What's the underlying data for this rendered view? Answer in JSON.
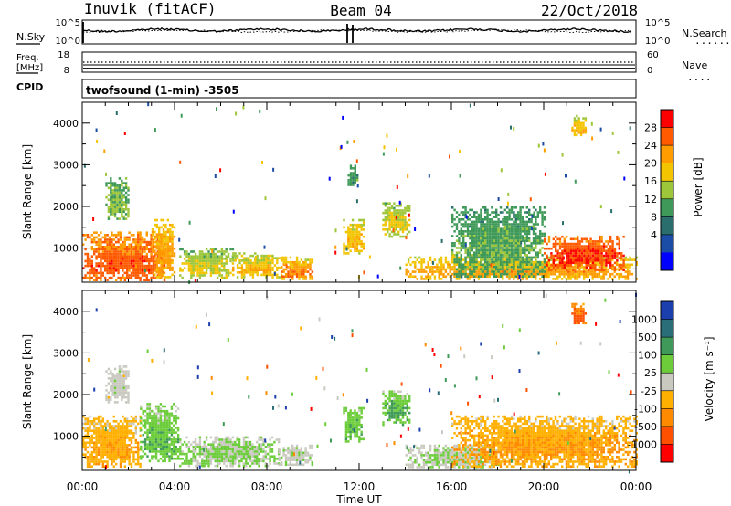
{
  "header": {
    "station": "Inuvik (fitACF)",
    "beam": "Beam 04",
    "date": "22/Oct/2018"
  },
  "noise_panel": {
    "left_label": "N.Sky",
    "right_label": "N.Search",
    "left_ticks": [
      "10^5",
      "10^0"
    ],
    "right_ticks": [
      "10^5",
      "10^0"
    ],
    "right_legend_marker": "......."
  },
  "freq_panel": {
    "left_label_line1": "Freq.",
    "left_label_line2": "[MHz]",
    "left_ticks": [
      "18",
      "8"
    ],
    "right_label": "Nave",
    "right_ticks": [
      "60",
      "0"
    ],
    "right_legend_marker": "...."
  },
  "cpid": {
    "label": "CPID",
    "value": "twofsound (1-min) -3505"
  },
  "x_axis": {
    "label": "Time UT",
    "tick_labels": [
      "00:00",
      "04:00",
      "08:00",
      "12:00",
      "16:00",
      "20:00",
      "00:00"
    ]
  },
  "power_colorbar": {
    "label": "Power [dB]",
    "ticks": [
      "28",
      "24",
      "20",
      "16",
      "12",
      "8",
      "4"
    ],
    "colors": [
      "#ff0000",
      "#ff5a00",
      "#ff9d00",
      "#f3c400",
      "#9ec63a",
      "#3f9a59",
      "#2a6e6e",
      "#1c4da6",
      "#0000ff"
    ]
  },
  "velocity_colorbar": {
    "label": "Velocity [m s⁻¹]",
    "ticks": [
      "1000",
      "500",
      "100",
      "25",
      "-25",
      "-100",
      "-500",
      "-1000"
    ],
    "colors": [
      "#1c3fae",
      "#2a6e7a",
      "#3f9a59",
      "#6ccc3a",
      "#c9c9c0",
      "#ffb000",
      "#ff8a00",
      "#ff5000",
      "#ff0000"
    ]
  },
  "chart_data": {
    "type": "heatmap",
    "x": {
      "label": "Time UT",
      "range_hours": [
        0,
        24
      ]
    },
    "y": {
      "label": "Slant Range [km]",
      "range_km": [
        180,
        4500
      ],
      "ticks": [
        1000,
        2000,
        3000,
        4000
      ]
    },
    "panels": [
      {
        "name": "power",
        "colorbar_label": "Power [dB]",
        "colorbar_range": [
          0,
          30
        ],
        "regions": [
          {
            "t0": 0.0,
            "t1": 3.6,
            "r0": 250,
            "r1": 1400,
            "value": 22,
            "core": 26
          },
          {
            "t0": 1.0,
            "t1": 2.0,
            "r0": 1700,
            "r1": 2700,
            "value": 12,
            "core": 14
          },
          {
            "t0": 3.0,
            "t1": 4.0,
            "r0": 300,
            "r1": 1700,
            "value": 18,
            "core": 22
          },
          {
            "t0": 4.2,
            "t1": 6.5,
            "r0": 300,
            "r1": 1000,
            "value": 13,
            "core": 18
          },
          {
            "t0": 6.5,
            "t1": 8.6,
            "r0": 300,
            "r1": 900,
            "value": 15,
            "core": 20
          },
          {
            "t0": 8.6,
            "t1": 10.0,
            "r0": 250,
            "r1": 800,
            "value": 17,
            "core": 24
          },
          {
            "t0": 11.3,
            "t1": 12.2,
            "r0": 900,
            "r1": 1700,
            "value": 16,
            "core": 20
          },
          {
            "t0": 11.5,
            "t1": 11.9,
            "r0": 2500,
            "r1": 3000,
            "value": 10,
            "core": 12
          },
          {
            "t0": 13.0,
            "t1": 14.2,
            "r0": 1300,
            "r1": 2100,
            "value": 14,
            "core": 18
          },
          {
            "t0": 14.0,
            "t1": 24.0,
            "r0": 250,
            "r1": 800,
            "value": 17,
            "core": 22
          },
          {
            "t0": 16.0,
            "t1": 20.0,
            "r0": 300,
            "r1": 2000,
            "value": 11,
            "core": 13
          },
          {
            "t0": 20.0,
            "t1": 23.5,
            "r0": 500,
            "r1": 1300,
            "value": 24,
            "core": 27
          },
          {
            "t0": 21.2,
            "t1": 21.8,
            "r0": 3700,
            "r1": 4200,
            "value": 16,
            "core": 20
          }
        ]
      },
      {
        "name": "velocity",
        "colorbar_label": "Velocity [m s⁻¹]",
        "colorbar_range": [
          -1000,
          1000
        ],
        "regions": [
          {
            "t0": 0.0,
            "t1": 2.5,
            "r0": 250,
            "r1": 1500,
            "value": -150,
            "core": -300
          },
          {
            "t0": 1.0,
            "t1": 2.0,
            "r0": 1800,
            "r1": 2700,
            "value": 0,
            "core": 10
          },
          {
            "t0": 2.5,
            "t1": 4.2,
            "r0": 400,
            "r1": 1800,
            "value": 150,
            "core": 300
          },
          {
            "t0": 4.2,
            "t1": 8.5,
            "r0": 300,
            "r1": 1000,
            "value": 60,
            "core": 150
          },
          {
            "t0": 8.5,
            "t1": 10.0,
            "r0": 300,
            "r1": 800,
            "value": 0,
            "core": 30
          },
          {
            "t0": 11.3,
            "t1": 12.2,
            "r0": 900,
            "r1": 1700,
            "value": 200,
            "core": 300
          },
          {
            "t0": 13.0,
            "t1": 14.2,
            "r0": 1300,
            "r1": 2100,
            "value": 150,
            "core": 400
          },
          {
            "t0": 14.0,
            "t1": 18.0,
            "r0": 250,
            "r1": 800,
            "value": 40,
            "core": 80
          },
          {
            "t0": 16.0,
            "t1": 24.0,
            "r0": 250,
            "r1": 1500,
            "value": -150,
            "core": -350
          },
          {
            "t0": 21.2,
            "t1": 21.8,
            "r0": 3700,
            "r1": 4200,
            "value": -400,
            "core": -700
          }
        ]
      }
    ]
  }
}
